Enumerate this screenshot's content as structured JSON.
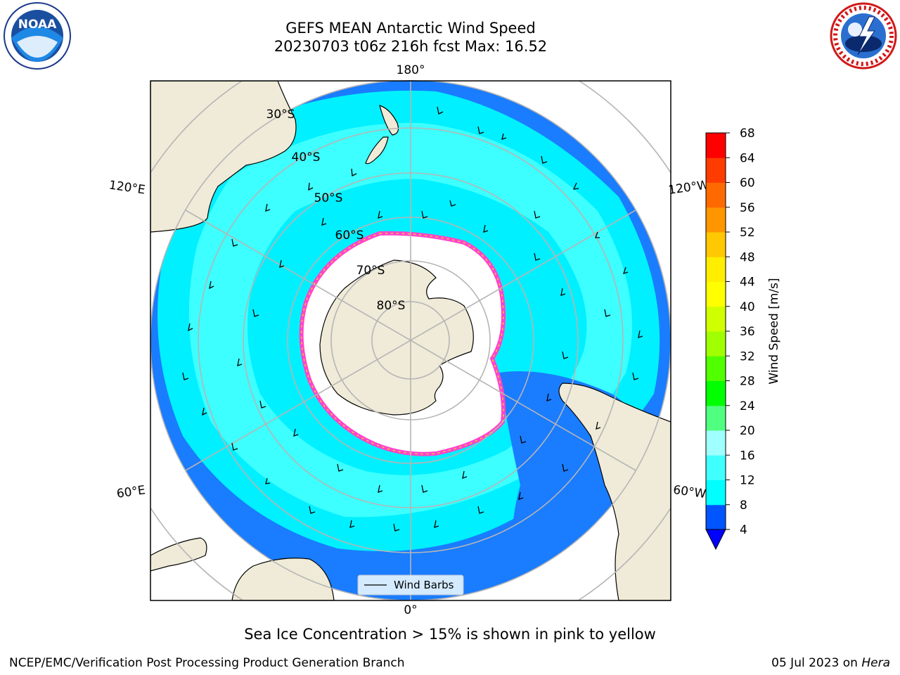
{
  "title": {
    "line1": "GEFS MEAN Antarctic Wind Speed",
    "line2": "20230703 t06z 216h fcst   Max: 16.52"
  },
  "logos": {
    "left": "noaa-logo",
    "left_text": "NOAA",
    "right": "nws-logo"
  },
  "map": {
    "meridian_labels": [
      "180°",
      "120°E",
      "120°W",
      "60°E",
      "60°W",
      "0°"
    ],
    "latitude_labels": [
      "30°S",
      "40°S",
      "50°S",
      "60°S",
      "70°S",
      "80°S"
    ],
    "legend_label": "Wind Barbs",
    "colors": {
      "land": "#efebd8",
      "sea_ice": "#ffffff",
      "wind_4_8": "#1a7cff",
      "wind_8_12": "#00f0ff",
      "wind_12_16": "#3dffff",
      "ice_edge": "#ff44cc",
      "grid": "#b5b5b5"
    }
  },
  "colorbar": {
    "label": "Wind Speed [m/s]",
    "ticks": [
      "4",
      "8",
      "12",
      "16",
      "20",
      "24",
      "28",
      "32",
      "36",
      "40",
      "44",
      "48",
      "52",
      "56",
      "60",
      "64",
      "68"
    ],
    "colors": [
      "#0055ff",
      "#00ffff",
      "#40ffff",
      "#a0ffff",
      "#50ff80",
      "#00ff00",
      "#50ff00",
      "#a0ff00",
      "#d0ff00",
      "#ffff00",
      "#ffee00",
      "#ffc800",
      "#ff9600",
      "#ff6a00",
      "#ff3c00",
      "#ff0000"
    ],
    "under_color": "#0000ff"
  },
  "caption": "Sea Ice Concentration > 15% is shown in pink to yellow",
  "footer": {
    "left": "NCEP/EMC/Verification Post Processing Product Generation Branch",
    "date": "05 Jul 2023 on",
    "machine": "Hera"
  }
}
